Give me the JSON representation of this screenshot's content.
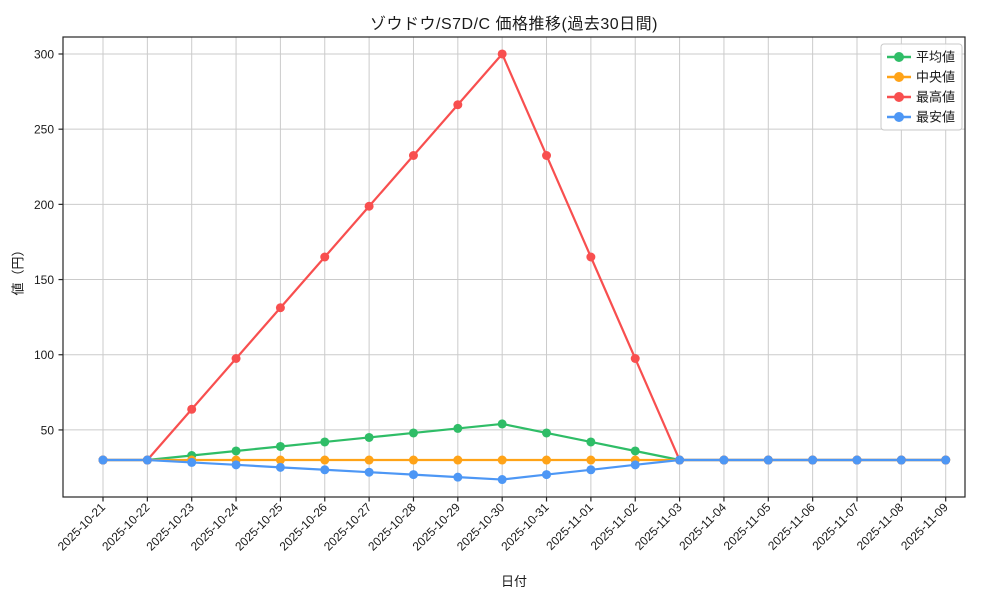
{
  "window": {
    "background": "#ffffff"
  },
  "chart": {
    "title": "ゾウドウ/S7D/C 価格推移(過去30日間)",
    "xlabel": "日付",
    "ylabel": "値（円）"
  },
  "chart_data": {
    "type": "line",
    "title": "ゾウドウ/S7D/C 価格推移(過去30日間)",
    "xlabel": "日付",
    "ylabel": "値（円）",
    "categories": [
      "2025-10-21",
      "2025-10-22",
      "2025-10-23",
      "2025-10-24",
      "2025-10-25",
      "2025-10-26",
      "2025-10-27",
      "2025-10-28",
      "2025-10-29",
      "2025-10-30",
      "2025-10-31",
      "2025-11-01",
      "2025-11-02",
      "2025-11-03",
      "2025-11-04",
      "2025-11-05",
      "2025-11-06",
      "2025-11-07",
      "2025-11-08",
      "2025-11-09"
    ],
    "series": [
      {
        "key": "average",
        "name": "平均値",
        "color": "#2fbd67",
        "values": [
          30,
          30,
          33,
          36,
          39,
          42,
          45,
          48,
          51,
          54,
          48,
          42,
          36,
          30,
          30,
          30,
          30,
          30,
          30,
          30
        ]
      },
      {
        "key": "median",
        "name": "中央値",
        "color": "#ffa317",
        "values": [
          30,
          30,
          30,
          30,
          30,
          30,
          30,
          30,
          30,
          30,
          30,
          30,
          30,
          30,
          30,
          30,
          30,
          30,
          30,
          30
        ]
      },
      {
        "key": "max",
        "name": "最高値",
        "color": "#f84f4f",
        "values": [
          30,
          30,
          63.75,
          97.5,
          131.25,
          165,
          198.75,
          232.5,
          266.25,
          300,
          232.5,
          165,
          97.5,
          30,
          30,
          30,
          30,
          30,
          30,
          30
        ]
      },
      {
        "key": "min",
        "name": "最安値",
        "color": "#4d97f5",
        "values": [
          30,
          30,
          28.4,
          26.8,
          25.1,
          23.5,
          21.9,
          20.3,
          18.6,
          17,
          20.3,
          23.5,
          26.8,
          30,
          30,
          30,
          30,
          30,
          30,
          30
        ]
      }
    ],
    "yticks": [
      50,
      100,
      150,
      200,
      250,
      300
    ],
    "ylim": [
      5.4,
      311.3
    ],
    "grid": true,
    "grid_color": "#cbcbcb",
    "axis_color": "#262626",
    "legend": {
      "position": "upper right",
      "entries": [
        "平均値",
        "中央値",
        "最高値",
        "最安値"
      ]
    },
    "marker": "circle"
  }
}
